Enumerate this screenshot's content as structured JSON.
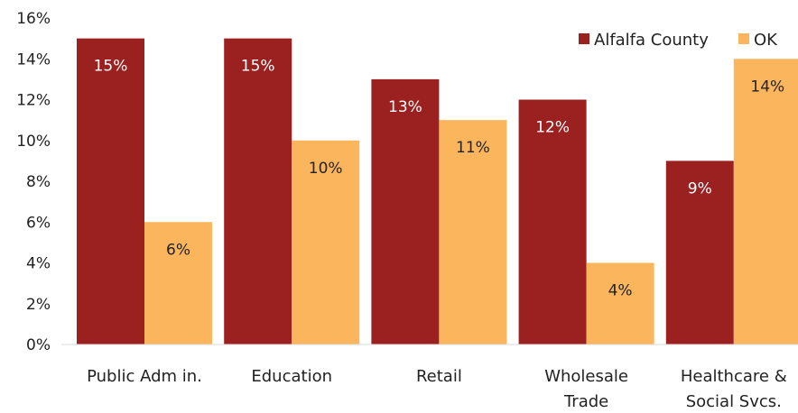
{
  "chart_data": {
    "type": "bar",
    "categories": [
      [
        "Public Adm in."
      ],
      [
        "Education"
      ],
      [
        "Retail"
      ],
      [
        "Wholesale",
        "Trade"
      ],
      [
        "Healthcare &",
        "Social Svcs."
      ]
    ],
    "series": [
      {
        "name": "Alfalfa County",
        "color": "#9b2020",
        "label_color": "#ffffff",
        "values": [
          15,
          15,
          13,
          12,
          9
        ],
        "labels": [
          "15%",
          "15%",
          "13%",
          "12%",
          "9%"
        ]
      },
      {
        "name": "OK",
        "color": "#fbb65d",
        "label_color": "#222222",
        "values": [
          6,
          10,
          11,
          4,
          14
        ],
        "labels": [
          "6%",
          "10%",
          "11%",
          "4%",
          "14%"
        ]
      }
    ],
    "yticks": [
      "0%",
      "2%",
      "4%",
      "6%",
      "8%",
      "10%",
      "12%",
      "14%",
      "16%"
    ],
    "ylim": [
      0,
      16
    ],
    "ytick_step": 2,
    "grid": false,
    "legend_position": "top-right",
    "title": "",
    "xlabel": "",
    "ylabel": ""
  }
}
